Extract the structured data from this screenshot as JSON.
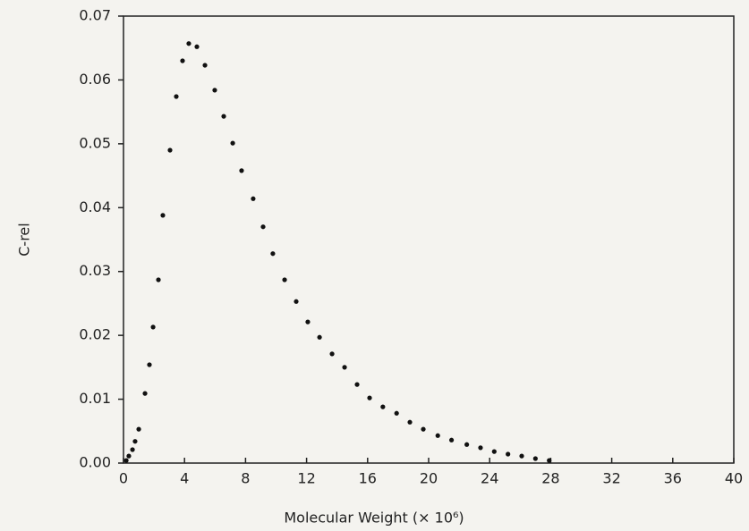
{
  "chart_data": {
    "type": "scatter",
    "xlabel": "Molecular Weight (× 10⁶)",
    "ylabel": "C-rel",
    "color": "#111111",
    "xlim": [
      0,
      40
    ],
    "ylim": [
      0,
      0.07
    ],
    "xticks": [
      0,
      4,
      8,
      12,
      16,
      20,
      24,
      28,
      32,
      36,
      40
    ],
    "yticks": [
      {
        "value": 0,
        "label": "0.00"
      },
      {
        "value": 0.01,
        "label": "0.01"
      },
      {
        "value": 0.02,
        "label": "0.02"
      },
      {
        "value": 0.03,
        "label": "0.03"
      },
      {
        "value": 0.04,
        "label": "0.04"
      },
      {
        "value": 0.05,
        "label": "0.05"
      },
      {
        "value": 0.06,
        "label": "0.06"
      },
      {
        "value": 0.07,
        "label": "0.07"
      }
    ],
    "x": [
      0.18,
      0.35,
      0.59,
      0.76,
      1.0,
      1.41,
      1.7,
      1.94,
      2.29,
      2.58,
      3.05,
      3.46,
      3.87,
      4.28,
      4.81,
      5.34,
      5.98,
      6.57,
      7.16,
      7.74,
      8.5,
      9.15,
      9.79,
      10.56,
      11.32,
      12.08,
      12.85,
      13.67,
      14.49,
      15.31,
      16.13,
      17.0,
      17.9,
      18.77,
      19.65,
      20.6,
      21.5,
      22.5,
      23.4,
      24.3,
      25.2,
      26.1,
      27.0,
      27.9
    ],
    "values": [
      0.0004,
      0.0011,
      0.0021,
      0.0034,
      0.0053,
      0.0109,
      0.0154,
      0.0213,
      0.0287,
      0.0388,
      0.049,
      0.0574,
      0.063,
      0.0657,
      0.0652,
      0.0623,
      0.0584,
      0.0543,
      0.0501,
      0.0458,
      0.0414,
      0.037,
      0.0328,
      0.0287,
      0.0253,
      0.0221,
      0.0197,
      0.0171,
      0.015,
      0.0123,
      0.0102,
      0.0088,
      0.0078,
      0.0064,
      0.0053,
      0.0043,
      0.0036,
      0.0029,
      0.0024,
      0.0018,
      0.0014,
      0.0011,
      0.0007,
      0.0004
    ]
  }
}
